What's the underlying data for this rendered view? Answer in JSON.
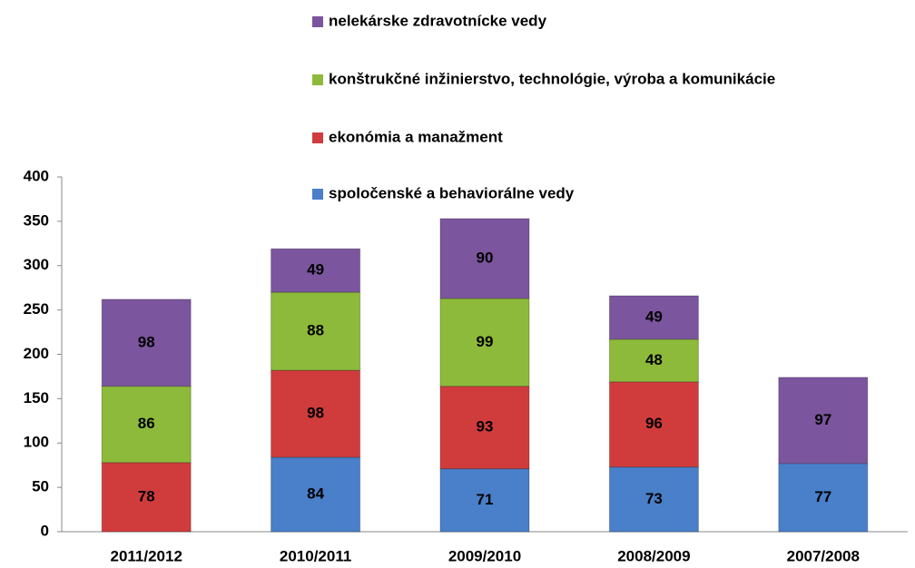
{
  "chart_data": {
    "type": "stacked_bar",
    "categories": [
      "2011/2012",
      "2010/2011",
      "2009/2010",
      "2008/2009",
      "2007/2008"
    ],
    "series": [
      {
        "name": "spoločenské a behaviorálne vedy",
        "color": "#4a7fc9",
        "values": [
          null,
          84,
          71,
          73,
          77
        ]
      },
      {
        "name": "ekonómia a manažment",
        "color": "#d03c3c",
        "values": [
          78,
          98,
          93,
          96,
          null
        ]
      },
      {
        "name": "konštrukčné inžinierstvo, technológie, výroba a komunikácie",
        "color": "#8dba3a",
        "values": [
          86,
          88,
          99,
          48,
          null
        ]
      },
      {
        "name": "nelekárske zdravotnícke vedy",
        "color": "#7b559e",
        "values": [
          98,
          49,
          90,
          49,
          97
        ]
      }
    ],
    "ylim": [
      0,
      400
    ],
    "yticks": [
      0,
      50,
      100,
      150,
      200,
      250,
      300,
      350,
      400
    ],
    "grid": false,
    "legend": "top"
  }
}
